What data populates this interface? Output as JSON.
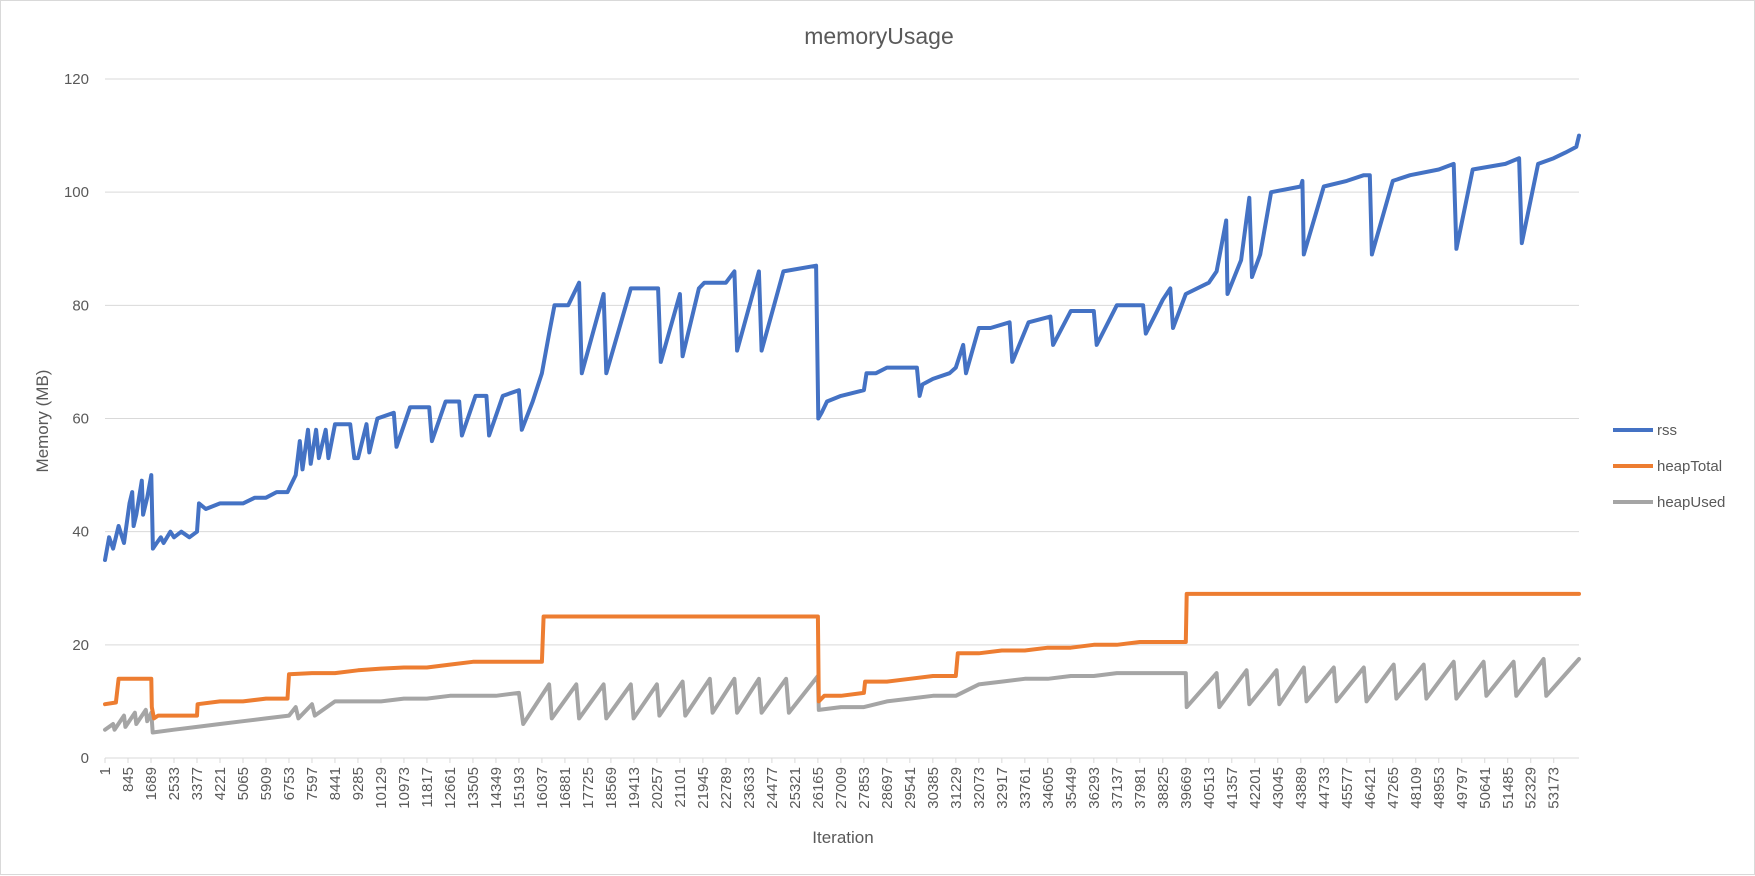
{
  "chart_data": {
    "type": "line",
    "title": "memoryUsage",
    "xlabel": "Iteration",
    "ylabel": "Memory (MB)",
    "ylim": [
      0,
      120
    ],
    "y_ticks": [
      0,
      20,
      40,
      60,
      80,
      100,
      120
    ],
    "x_range": [
      1,
      54100
    ],
    "x_tick_labels": [
      "1",
      "845",
      "1689",
      "2533",
      "3377",
      "4221",
      "5065",
      "5909",
      "6753",
      "7597",
      "8441",
      "9285",
      "10129",
      "10973",
      "11817",
      "12661",
      "13505",
      "14349",
      "15193",
      "16037",
      "16881",
      "17725",
      "18569",
      "19413",
      "20257",
      "21101",
      "21945",
      "22789",
      "23633",
      "24477",
      "25321",
      "26165",
      "27009",
      "27853",
      "28697",
      "29541",
      "30385",
      "31229",
      "32073",
      "32917",
      "33761",
      "34605",
      "35449",
      "36293",
      "37137",
      "37981",
      "38825",
      "39669",
      "40513",
      "41357",
      "42201",
      "43045",
      "43889",
      "44733",
      "45577",
      "46421",
      "47265",
      "48109",
      "48953",
      "49797",
      "50641",
      "51485",
      "52329",
      "53173"
    ],
    "grid": "horizontal",
    "legend_position": "right",
    "series": [
      {
        "name": "rss",
        "color": "#4472C4",
        "points": [
          [
            1,
            35
          ],
          [
            150,
            39
          ],
          [
            300,
            37
          ],
          [
            500,
            41
          ],
          [
            700,
            38
          ],
          [
            900,
            45
          ],
          [
            1000,
            47
          ],
          [
            1050,
            41
          ],
          [
            1150,
            43
          ],
          [
            1350,
            49
          ],
          [
            1400,
            43
          ],
          [
            1550,
            46
          ],
          [
            1700,
            50
          ],
          [
            1760,
            37
          ],
          [
            1900,
            38
          ],
          [
            2050,
            39
          ],
          [
            2150,
            38
          ],
          [
            2400,
            40
          ],
          [
            2533,
            39
          ],
          [
            2800,
            40
          ],
          [
            3100,
            39
          ],
          [
            3377,
            40
          ],
          [
            3450,
            45
          ],
          [
            3700,
            44
          ],
          [
            4221,
            45
          ],
          [
            4700,
            45
          ],
          [
            5065,
            45
          ],
          [
            5500,
            46
          ],
          [
            5909,
            46
          ],
          [
            6300,
            47
          ],
          [
            6700,
            47
          ],
          [
            6800,
            48
          ],
          [
            7000,
            50
          ],
          [
            7150,
            56
          ],
          [
            7250,
            51
          ],
          [
            7450,
            58
          ],
          [
            7550,
            52
          ],
          [
            7750,
            58
          ],
          [
            7850,
            53
          ],
          [
            8100,
            58
          ],
          [
            8200,
            53
          ],
          [
            8441,
            59
          ],
          [
            9000,
            59
          ],
          [
            9150,
            53
          ],
          [
            9285,
            53
          ],
          [
            9600,
            59
          ],
          [
            9700,
            54
          ],
          [
            10000,
            60
          ],
          [
            10600,
            61
          ],
          [
            10700,
            55
          ],
          [
            11200,
            62
          ],
          [
            11900,
            62
          ],
          [
            12000,
            56
          ],
          [
            12500,
            63
          ],
          [
            13000,
            63
          ],
          [
            13100,
            57
          ],
          [
            13600,
            64
          ],
          [
            14000,
            64
          ],
          [
            14100,
            57
          ],
          [
            14600,
            64
          ],
          [
            15193,
            65
          ],
          [
            15300,
            58
          ],
          [
            15700,
            63
          ],
          [
            16037,
            68
          ],
          [
            16300,
            75
          ],
          [
            16500,
            80
          ],
          [
            17000,
            80
          ],
          [
            17400,
            84
          ],
          [
            17500,
            68
          ],
          [
            18300,
            82
          ],
          [
            18400,
            68
          ],
          [
            19300,
            83
          ],
          [
            20300,
            83
          ],
          [
            20400,
            70
          ],
          [
            21100,
            82
          ],
          [
            21200,
            71
          ],
          [
            21800,
            83
          ],
          [
            22000,
            84
          ],
          [
            22789,
            84
          ],
          [
            23100,
            86
          ],
          [
            23200,
            72
          ],
          [
            24000,
            86
          ],
          [
            24100,
            72
          ],
          [
            24900,
            86
          ],
          [
            26100,
            87
          ],
          [
            26180,
            60
          ],
          [
            26300,
            61
          ],
          [
            26500,
            63
          ],
          [
            27009,
            64
          ],
          [
            27853,
            65
          ],
          [
            27950,
            68
          ],
          [
            28300,
            68
          ],
          [
            28697,
            69
          ],
          [
            29200,
            69
          ],
          [
            29800,
            69
          ],
          [
            29900,
            64
          ],
          [
            30000,
            66
          ],
          [
            30385,
            67
          ],
          [
            31000,
            68
          ],
          [
            31229,
            69
          ],
          [
            31500,
            73
          ],
          [
            31600,
            68
          ],
          [
            32073,
            76
          ],
          [
            32500,
            76
          ],
          [
            33200,
            77
          ],
          [
            33300,
            70
          ],
          [
            33900,
            77
          ],
          [
            34700,
            78
          ],
          [
            34800,
            73
          ],
          [
            35449,
            79
          ],
          [
            36293,
            79
          ],
          [
            36400,
            73
          ],
          [
            37137,
            80
          ],
          [
            38100,
            80
          ],
          [
            38200,
            75
          ],
          [
            38825,
            81
          ],
          [
            39100,
            83
          ],
          [
            39200,
            76
          ],
          [
            39669,
            82
          ],
          [
            40513,
            84
          ],
          [
            40800,
            86
          ],
          [
            41150,
            95
          ],
          [
            41200,
            82
          ],
          [
            41700,
            88
          ],
          [
            42000,
            99
          ],
          [
            42100,
            85
          ],
          [
            42400,
            89
          ],
          [
            42800,
            100
          ],
          [
            43889,
            101
          ],
          [
            43950,
            102
          ],
          [
            44000,
            89
          ],
          [
            44733,
            101
          ],
          [
            45577,
            102
          ],
          [
            46200,
            103
          ],
          [
            46421,
            103
          ],
          [
            46500,
            89
          ],
          [
            47265,
            102
          ],
          [
            47900,
            103
          ],
          [
            48953,
            104
          ],
          [
            49500,
            105
          ],
          [
            49600,
            90
          ],
          [
            50200,
            104
          ],
          [
            51400,
            105
          ],
          [
            51900,
            106
          ],
          [
            52000,
            91
          ],
          [
            52600,
            105
          ],
          [
            53173,
            106
          ],
          [
            53600,
            107
          ],
          [
            54000,
            108
          ],
          [
            54100,
            110
          ]
        ]
      },
      {
        "name": "heapTotal",
        "color": "#ED7D31",
        "points": [
          [
            1,
            9.5
          ],
          [
            400,
            9.8
          ],
          [
            500,
            14
          ],
          [
            1700,
            14
          ],
          [
            1720,
            9
          ],
          [
            1800,
            7
          ],
          [
            1950,
            7.5
          ],
          [
            3377,
            7.5
          ],
          [
            3400,
            9.5
          ],
          [
            4221,
            10
          ],
          [
            5065,
            10
          ],
          [
            5909,
            10.5
          ],
          [
            6700,
            10.5
          ],
          [
            6753,
            14.8
          ],
          [
            7597,
            15
          ],
          [
            8441,
            15
          ],
          [
            9285,
            15.5
          ],
          [
            10129,
            15.8
          ],
          [
            10973,
            16
          ],
          [
            11817,
            16
          ],
          [
            12661,
            16.5
          ],
          [
            13505,
            17
          ],
          [
            14349,
            17
          ],
          [
            15193,
            17
          ],
          [
            16037,
            17
          ],
          [
            16100,
            25
          ],
          [
            26165,
            25
          ],
          [
            26200,
            10
          ],
          [
            26400,
            11
          ],
          [
            27009,
            11
          ],
          [
            27853,
            11.5
          ],
          [
            27900,
            13.5
          ],
          [
            28697,
            13.5
          ],
          [
            29541,
            14
          ],
          [
            30385,
            14.5
          ],
          [
            31229,
            14.5
          ],
          [
            31300,
            18.5
          ],
          [
            32073,
            18.5
          ],
          [
            32917,
            19
          ],
          [
            33761,
            19
          ],
          [
            34605,
            19.5
          ],
          [
            35449,
            19.5
          ],
          [
            36293,
            20
          ],
          [
            37137,
            20
          ],
          [
            37981,
            20.5
          ],
          [
            38825,
            20.5
          ],
          [
            39669,
            20.5
          ],
          [
            39700,
            29
          ],
          [
            54100,
            29
          ]
        ]
      },
      {
        "name": "heapUsed",
        "color": "#A5A5A5",
        "points": [
          [
            1,
            5
          ],
          [
            300,
            6
          ],
          [
            350,
            5
          ],
          [
            700,
            7.5
          ],
          [
            750,
            5.5
          ],
          [
            1100,
            8
          ],
          [
            1150,
            6
          ],
          [
            1500,
            8.5
          ],
          [
            1550,
            6.5
          ],
          [
            1700,
            8
          ],
          [
            1750,
            4.5
          ],
          [
            2533,
            5
          ],
          [
            3377,
            5.5
          ],
          [
            4221,
            6
          ],
          [
            5065,
            6.5
          ],
          [
            5909,
            7
          ],
          [
            6753,
            7.5
          ],
          [
            7000,
            9
          ],
          [
            7100,
            7
          ],
          [
            7597,
            9.5
          ],
          [
            7700,
            7.5
          ],
          [
            8441,
            10
          ],
          [
            9285,
            10
          ],
          [
            10129,
            10
          ],
          [
            10973,
            10.5
          ],
          [
            11817,
            10.5
          ],
          [
            12661,
            11
          ],
          [
            13505,
            11
          ],
          [
            14349,
            11
          ],
          [
            15193,
            11.5
          ],
          [
            15350,
            6
          ],
          [
            16300,
            13
          ],
          [
            16400,
            7
          ],
          [
            17300,
            13
          ],
          [
            17400,
            7
          ],
          [
            18300,
            13
          ],
          [
            18400,
            7
          ],
          [
            19300,
            13
          ],
          [
            19400,
            7
          ],
          [
            20257,
            13
          ],
          [
            20350,
            7.5
          ],
          [
            21200,
            13.5
          ],
          [
            21300,
            7.5
          ],
          [
            22200,
            14
          ],
          [
            22300,
            8
          ],
          [
            23100,
            14
          ],
          [
            23200,
            8
          ],
          [
            24000,
            14
          ],
          [
            24100,
            8
          ],
          [
            25000,
            14
          ],
          [
            25100,
            8
          ],
          [
            26165,
            14.5
          ],
          [
            26200,
            8.5
          ],
          [
            27009,
            9
          ],
          [
            27853,
            9
          ],
          [
            28697,
            10
          ],
          [
            29541,
            10.5
          ],
          [
            30385,
            11
          ],
          [
            31229,
            11
          ],
          [
            32073,
            13
          ],
          [
            32917,
            13.5
          ],
          [
            33761,
            14
          ],
          [
            34605,
            14
          ],
          [
            35449,
            14.5
          ],
          [
            36293,
            14.5
          ],
          [
            37137,
            15
          ],
          [
            37981,
            15
          ],
          [
            38825,
            15
          ],
          [
            39669,
            15
          ],
          [
            39700,
            9
          ],
          [
            40800,
            15
          ],
          [
            40900,
            9
          ],
          [
            41900,
            15.5
          ],
          [
            42000,
            9.5
          ],
          [
            43000,
            15.5
          ],
          [
            43100,
            9.5
          ],
          [
            44000,
            16
          ],
          [
            44100,
            10
          ],
          [
            45100,
            16
          ],
          [
            45200,
            10
          ],
          [
            46200,
            16
          ],
          [
            46300,
            10
          ],
          [
            47300,
            16.5
          ],
          [
            47400,
            10.5
          ],
          [
            48400,
            16.5
          ],
          [
            48500,
            10.5
          ],
          [
            49500,
            17
          ],
          [
            49600,
            10.5
          ],
          [
            50600,
            17
          ],
          [
            50700,
            11
          ],
          [
            51700,
            17
          ],
          [
            51800,
            11
          ],
          [
            52800,
            17.5
          ],
          [
            52900,
            11
          ],
          [
            54100,
            17.5
          ]
        ]
      }
    ]
  }
}
